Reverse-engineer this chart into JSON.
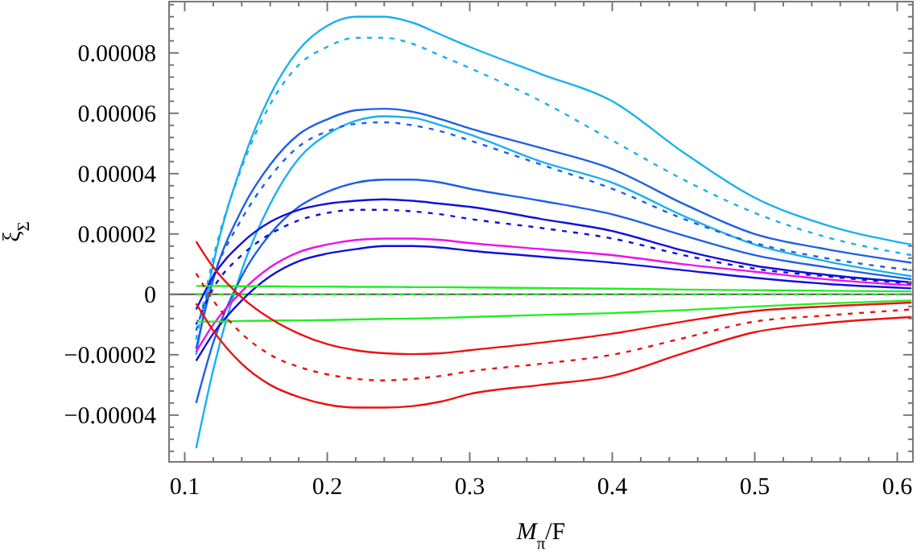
{
  "chart_data": {
    "type": "line",
    "xlabel": "M$_{π}$/F",
    "ylabel": "ξ$_{Σ}$",
    "x": [
      0.108,
      0.12,
      0.14,
      0.16,
      0.18,
      0.2,
      0.22,
      0.24,
      0.26,
      0.28,
      0.3,
      0.35,
      0.4,
      0.45,
      0.5,
      0.55,
      0.61
    ],
    "xlim": [
      0.089,
      0.611
    ],
    "xticks": [
      0.1,
      0.2,
      0.3,
      0.4,
      0.5,
      0.6
    ],
    "ylim": [
      -5.55e-05,
      9.7e-05
    ],
    "yticks": [
      {
        "value": -4e-05,
        "label": "−0.00004"
      },
      {
        "value": -2e-05,
        "label": "−0.00002"
      },
      {
        "value": 0,
        "label": "0"
      },
      {
        "value": 2e-05,
        "label": "0.00002"
      },
      {
        "value": 4e-05,
        "label": "0.00004"
      },
      {
        "value": 6e-05,
        "label": "0.00006"
      },
      {
        "value": 8e-05,
        "label": "0.00008"
      }
    ],
    "ref_lines": [
      {
        "axis": "y",
        "value": 0,
        "color": "#555555"
      }
    ],
    "grid": false,
    "marker": "none",
    "series": [
      {
        "color": "#1ab0f0",
        "line_style": "solid",
        "values": [
          -2e-05,
          1e-05,
          4.3e-05,
          6.6e-05,
          8.1e-05,
          8.9e-05,
          9.2e-05,
          9.2e-05,
          9e-05,
          8.6e-05,
          8.2e-05,
          7.3e-05,
          6.4e-05,
          4.7e-05,
          3.2e-05,
          2.3e-05,
          1.65e-05
        ]
      },
      {
        "color": "#1ab0f0",
        "line_style": "dashed",
        "values": [
          -1.5e-05,
          1.2e-05,
          4.2e-05,
          6.3e-05,
          7.6e-05,
          8.2e-05,
          8.5e-05,
          8.5e-05,
          8.3e-05,
          7.9e-05,
          7.5e-05,
          6.4e-05,
          5.1e-05,
          3.8e-05,
          2.7e-05,
          1.9e-05,
          1.3e-05
        ]
      },
      {
        "color": "#1f5fe6",
        "line_style": "solid",
        "values": [
          -1.8e-05,
          5e-06,
          2.8e-05,
          4.3e-05,
          5.3e-05,
          5.8e-05,
          6.1e-05,
          6.15e-05,
          6.05e-05,
          5.8e-05,
          5.5e-05,
          4.85e-05,
          4.15e-05,
          3e-05,
          2e-05,
          1.5e-05,
          1.05e-05
        ]
      },
      {
        "color": "#1ab0f0",
        "line_style": "solid",
        "values": [
          -5.1e-05,
          -2.5e-05,
          8e-06,
          3e-05,
          4.5e-05,
          5.3e-05,
          5.75e-05,
          5.9e-05,
          5.85e-05,
          5.6e-05,
          5.3e-05,
          4.4e-05,
          3.7e-05,
          2.6e-05,
          1.65e-05,
          1.1e-05,
          6e-06
        ]
      },
      {
        "color": "#1f5fe6",
        "line_style": "dashed",
        "values": [
          -1.2e-05,
          6e-06,
          2.5e-05,
          3.9e-05,
          4.9e-05,
          5.4e-05,
          5.65e-05,
          5.7e-05,
          5.6e-05,
          5.4e-05,
          5.1e-05,
          4.3e-05,
          3.5e-05,
          2.5e-05,
          1.7e-05,
          1.2e-05,
          8e-06
        ]
      },
      {
        "color": "#1f5fe6",
        "line_style": "solid",
        "values": [
          -3.6e-05,
          -1.6e-05,
          6e-06,
          2e-05,
          2.9e-05,
          3.4e-05,
          3.7e-05,
          3.8e-05,
          3.8e-05,
          3.7e-05,
          3.5e-05,
          3.1e-05,
          2.65e-05,
          1.95e-05,
          1.3e-05,
          9e-06,
          5e-06
        ]
      },
      {
        "color": "#1010dd",
        "line_style": "solid",
        "values": [
          -5e-06,
          6e-06,
          1.7e-05,
          2.4e-05,
          2.8e-05,
          3e-05,
          3.1e-05,
          3.15e-05,
          3.1e-05,
          3e-05,
          2.9e-05,
          2.5e-05,
          2.1e-05,
          1.45e-05,
          9.5e-06,
          6.5e-06,
          4e-06
        ]
      },
      {
        "color": "#1010dd",
        "line_style": "dashed",
        "values": [
          -1e-05,
          2e-06,
          1.3e-05,
          2e-05,
          2.45e-05,
          2.7e-05,
          2.8e-05,
          2.8e-05,
          2.75e-05,
          2.65e-05,
          2.5e-05,
          2.2e-05,
          1.85e-05,
          1.3e-05,
          8.5e-06,
          6e-06,
          3.5e-06
        ]
      },
      {
        "color": "#ee10ee",
        "line_style": "solid",
        "values": [
          -1.9e-05,
          -1e-05,
          1e-06,
          9e-06,
          1.4e-05,
          1.65e-05,
          1.8e-05,
          1.85e-05,
          1.85e-05,
          1.8e-05,
          1.7e-05,
          1.5e-05,
          1.3e-05,
          1e-05,
          7.5e-06,
          5e-06,
          3e-06
        ]
      },
      {
        "color": "#1010dd",
        "line_style": "solid",
        "values": [
          -2.2e-05,
          -1.3e-05,
          -2e-06,
          6e-06,
          1.1e-05,
          1.35e-05,
          1.5e-05,
          1.6e-05,
          1.6e-05,
          1.55e-05,
          1.45e-05,
          1.25e-05,
          1.05e-05,
          8e-06,
          5.5e-06,
          3.5e-06,
          2e-06
        ]
      },
      {
        "color": "#22ee22",
        "line_style": "solid",
        "values": [
          2.8e-06,
          2.8e-06,
          2.7e-06,
          2.7e-06,
          2.6e-06,
          2.6e-06,
          2.5e-06,
          2.5e-06,
          2.4e-06,
          2.4e-06,
          2.3e-06,
          2.1e-06,
          1.9e-06,
          1.6e-06,
          1.4e-06,
          1.2e-06,
          1e-06
        ]
      },
      {
        "color": "#22ee22",
        "line_style": "dashed",
        "values": [
          0,
          0,
          0,
          0,
          0,
          0,
          0,
          0,
          0,
          0,
          0,
          0,
          0,
          0,
          0,
          0,
          0
        ]
      },
      {
        "color": "#22ee22",
        "line_style": "solid",
        "values": [
          -9e-06,
          -9e-06,
          -8.8e-06,
          -8.7e-06,
          -8.6e-06,
          -8.5e-06,
          -8.3e-06,
          -8.1e-06,
          -8e-06,
          -7.8e-06,
          -7.5e-06,
          -6.8e-06,
          -6.2e-06,
          -5.2e-06,
          -4e-06,
          -3e-06,
          -2e-06
        ]
      },
      {
        "color": "#ee1010",
        "line_style": "solid",
        "values": [
          1.75e-05,
          9e-06,
          -1e-06,
          -8e-06,
          -1.3e-05,
          -1.65e-05,
          -1.85e-05,
          -1.95e-05,
          -1.98e-05,
          -1.95e-05,
          -1.85e-05,
          -1.6e-05,
          -1.3e-05,
          -9e-06,
          -5.5e-06,
          -4e-06,
          -2.7e-06
        ]
      },
      {
        "color": "#ee1010",
        "line_style": "dashed",
        "values": [
          7e-06,
          -2e-06,
          -1.3e-05,
          -2e-05,
          -2.4e-05,
          -2.65e-05,
          -2.8e-05,
          -2.85e-05,
          -2.8e-05,
          -2.7e-05,
          -2.55e-05,
          -2.3e-05,
          -2e-05,
          -1.45e-05,
          -9e-06,
          -7e-06,
          -5e-06
        ]
      },
      {
        "color": "#ee1010",
        "line_style": "solid",
        "values": [
          -3e-06,
          -1.2e-05,
          -2.3e-05,
          -3e-05,
          -3.4e-05,
          -3.65e-05,
          -3.75e-05,
          -3.75e-05,
          -3.7e-05,
          -3.55e-05,
          -3.3e-05,
          -3e-05,
          -2.7e-05,
          -1.95e-05,
          -1.25e-05,
          -9.5e-06,
          -7.5e-06
        ]
      }
    ]
  }
}
